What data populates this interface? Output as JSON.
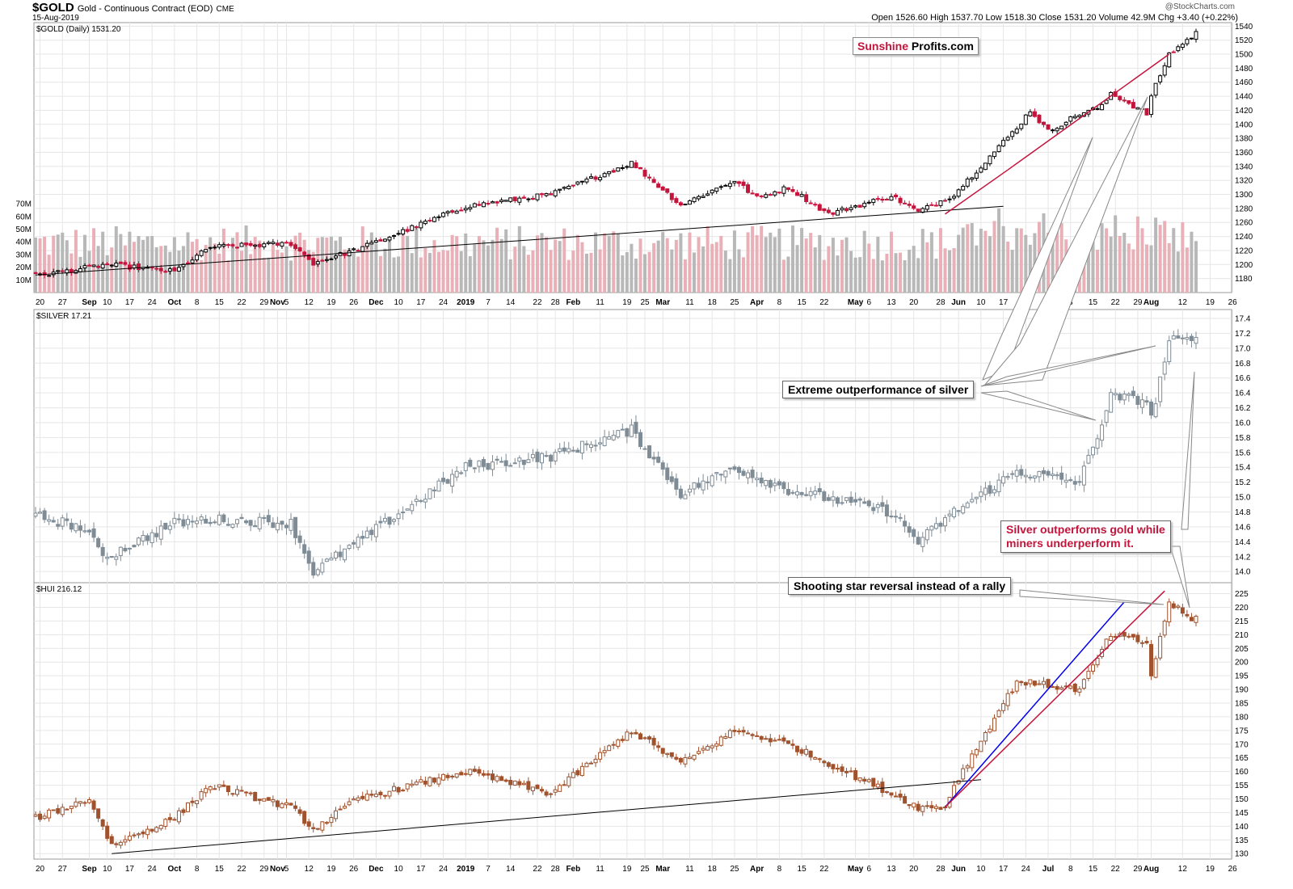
{
  "header": {
    "symbol": "$GOLD",
    "description": "Gold - Continuous Contract (EOD)",
    "exchange": "CME",
    "date": "15-Aug-2019",
    "watermark": "@StockCharts.com",
    "ohlc": "Open 1526.60  High 1537.70  Low 1518.30  Close 1531.20  Volume 42.9M  Chg +3.40 (+0.22%)"
  },
  "logo": {
    "part1": "Sunshine",
    "part2": "Profits.com"
  },
  "annotations": {
    "silver_outperformance": "Extreme outperformance of silver",
    "silver_vs_miners_line1": "Silver outperforms gold while",
    "silver_vs_miners_line2": "miners underperform it.",
    "shooting_star": "Shooting star reversal instead of a rally"
  },
  "colors": {
    "gold_up": "#000000",
    "gold_down": "#c4143c",
    "silver": "#7f8c96",
    "hui": "#a0522d",
    "volume_up": "#b8b8b8",
    "volume_down": "#eab0b8",
    "trend_red": "#c4143c",
    "trend_blue": "#0000ee",
    "trend_black": "#000000"
  },
  "chart_data": [
    {
      "type": "candlestick",
      "label": "$GOLD (Daily) 1531.20",
      "y_ticks": [
        1180,
        1200,
        1220,
        1240,
        1260,
        1280,
        1300,
        1320,
        1340,
        1360,
        1380,
        1400,
        1420,
        1440,
        1460,
        1480,
        1500,
        1520,
        1540
      ],
      "ylim": [
        1160,
        1545
      ],
      "volume_ticks": [
        "10M",
        "20M",
        "30M",
        "40M",
        "50M",
        "60M",
        "70M"
      ],
      "anchors": [
        [
          "2018-08-17",
          1184
        ],
        [
          "2018-09-10",
          1200
        ],
        [
          "2018-10-01",
          1190
        ],
        [
          "2018-10-11",
          1225
        ],
        [
          "2018-11-06",
          1230
        ],
        [
          "2018-11-13",
          1202
        ],
        [
          "2018-11-27",
          1222
        ],
        [
          "2018-12-31",
          1283
        ],
        [
          "2019-01-25",
          1300
        ],
        [
          "2019-02-20",
          1345
        ],
        [
          "2019-03-07",
          1285
        ],
        [
          "2019-03-25",
          1320
        ],
        [
          "2019-04-01",
          1295
        ],
        [
          "2019-04-10",
          1310
        ],
        [
          "2019-04-23",
          1272
        ],
        [
          "2019-05-13",
          1298
        ],
        [
          "2019-05-21",
          1275
        ],
        [
          "2019-05-31",
          1300
        ],
        [
          "2019-06-20",
          1395
        ],
        [
          "2019-06-25",
          1420
        ],
        [
          "2019-07-01",
          1390
        ],
        [
          "2019-07-10",
          1415
        ],
        [
          "2019-07-17",
          1425
        ],
        [
          "2019-07-19",
          1445
        ],
        [
          "2019-07-31",
          1415
        ],
        [
          "2019-08-01",
          1440
        ],
        [
          "2019-08-07",
          1500
        ],
        [
          "2019-08-14",
          1525
        ],
        [
          "2019-08-15",
          1531.2
        ]
      ]
    },
    {
      "type": "candlestick",
      "label": "$SILVER 17.21",
      "y_ticks": [
        14.0,
        14.2,
        14.4,
        14.6,
        14.8,
        15.0,
        15.2,
        15.4,
        15.6,
        15.8,
        16.0,
        16.2,
        16.4,
        16.6,
        16.8,
        17.0,
        17.2,
        17.4
      ],
      "ylim": [
        13.85,
        17.52
      ],
      "anchors": [
        [
          "2018-08-17",
          14.75
        ],
        [
          "2018-08-31",
          14.6
        ],
        [
          "2018-09-10",
          14.2
        ],
        [
          "2018-10-01",
          14.65
        ],
        [
          "2018-10-11",
          14.7
        ],
        [
          "2018-11-06",
          14.65
        ],
        [
          "2018-11-13",
          14.0
        ],
        [
          "2018-11-27",
          14.4
        ],
        [
          "2018-12-31",
          15.4
        ],
        [
          "2019-01-25",
          15.55
        ],
        [
          "2019-02-20",
          15.9
        ],
        [
          "2019-03-07",
          15.05
        ],
        [
          "2019-03-25",
          15.4
        ],
        [
          "2019-04-10",
          15.1
        ],
        [
          "2019-05-13",
          14.8
        ],
        [
          "2019-05-21",
          14.4
        ],
        [
          "2019-05-31",
          14.8
        ],
        [
          "2019-06-20",
          15.35
        ],
        [
          "2019-07-10",
          15.2
        ],
        [
          "2019-07-17",
          16.0
        ],
        [
          "2019-07-19",
          16.35
        ],
        [
          "2019-07-31",
          16.3
        ],
        [
          "2019-08-01",
          16.05
        ],
        [
          "2019-08-07",
          17.1
        ],
        [
          "2019-08-14",
          17.1
        ],
        [
          "2019-08-15",
          17.21
        ]
      ]
    },
    {
      "type": "candlestick",
      "label": "$HUI 216.12",
      "y_ticks": [
        130,
        135,
        140,
        145,
        150,
        155,
        160,
        165,
        170,
        175,
        180,
        185,
        190,
        195,
        200,
        205,
        210,
        215,
        220,
        225
      ],
      "ylim": [
        128,
        229
      ],
      "anchors": [
        [
          "2018-08-17",
          143
        ],
        [
          "2018-09-04",
          150
        ],
        [
          "2018-09-11",
          133
        ],
        [
          "2018-10-01",
          143
        ],
        [
          "2018-10-11",
          155
        ],
        [
          "2018-11-06",
          147
        ],
        [
          "2018-11-13",
          139
        ],
        [
          "2018-11-27",
          150
        ],
        [
          "2018-12-31",
          160
        ],
        [
          "2019-01-25",
          152
        ],
        [
          "2019-02-20",
          175
        ],
        [
          "2019-03-07",
          163
        ],
        [
          "2019-03-25",
          175
        ],
        [
          "2019-04-10",
          170
        ],
        [
          "2019-05-13",
          152
        ],
        [
          "2019-05-21",
          147
        ],
        [
          "2019-05-29",
          147
        ],
        [
          "2019-05-31",
          155
        ],
        [
          "2019-06-20",
          193
        ],
        [
          "2019-07-10",
          190
        ],
        [
          "2019-07-19",
          210
        ],
        [
          "2019-07-31",
          207
        ],
        [
          "2019-08-01",
          195
        ],
        [
          "2019-08-07",
          222
        ],
        [
          "2019-08-14",
          215
        ],
        [
          "2019-08-15",
          216.12
        ]
      ]
    }
  ],
  "x_axis_labels": [
    {
      "date": "2018-08-20",
      "t": "20"
    },
    {
      "date": "2018-08-27",
      "t": "27"
    },
    {
      "date": "2018-09-04",
      "t": "Sep",
      "bold": true
    },
    {
      "date": "2018-09-10",
      "t": "10"
    },
    {
      "date": "2018-09-17",
      "t": "17"
    },
    {
      "date": "2018-09-24",
      "t": "24"
    },
    {
      "date": "2018-10-01",
      "t": "Oct",
      "bold": true
    },
    {
      "date": "2018-10-08",
      "t": "8"
    },
    {
      "date": "2018-10-15",
      "t": "15"
    },
    {
      "date": "2018-10-22",
      "t": "22"
    },
    {
      "date": "2018-10-29",
      "t": "29"
    },
    {
      "date": "2018-11-01",
      "t": "Nov",
      "bold": true
    },
    {
      "date": "2018-11-05",
      "t": "5"
    },
    {
      "date": "2018-11-12",
      "t": "12"
    },
    {
      "date": "2018-11-19",
      "t": "19"
    },
    {
      "date": "2018-11-26",
      "t": "26"
    },
    {
      "date": "2018-12-03",
      "t": "Dec",
      "bold": true
    },
    {
      "date": "2018-12-10",
      "t": "10"
    },
    {
      "date": "2018-12-17",
      "t": "17"
    },
    {
      "date": "2018-12-24",
      "t": "24"
    },
    {
      "date": "2018-12-31",
      "t": "2019",
      "bold": true
    },
    {
      "date": "2019-01-07",
      "t": "7"
    },
    {
      "date": "2019-01-14",
      "t": "14"
    },
    {
      "date": "2019-01-22",
      "t": "22"
    },
    {
      "date": "2019-01-28",
      "t": "28"
    },
    {
      "date": "2019-02-01",
      "t": "Feb",
      "bold": true
    },
    {
      "date": "2019-02-11",
      "t": "11"
    },
    {
      "date": "2019-02-19",
      "t": "19"
    },
    {
      "date": "2019-02-25",
      "t": "25"
    },
    {
      "date": "2019-03-01",
      "t": "Mar",
      "bold": true
    },
    {
      "date": "2019-03-11",
      "t": "11"
    },
    {
      "date": "2019-03-18",
      "t": "18"
    },
    {
      "date": "2019-03-25",
      "t": "25"
    },
    {
      "date": "2019-04-01",
      "t": "Apr",
      "bold": true
    },
    {
      "date": "2019-04-08",
      "t": "8"
    },
    {
      "date": "2019-04-15",
      "t": "15"
    },
    {
      "date": "2019-04-22",
      "t": "22"
    },
    {
      "date": "2019-05-01",
      "t": "May",
      "bold": true
    },
    {
      "date": "2019-05-06",
      "t": "6"
    },
    {
      "date": "2019-05-13",
      "t": "13"
    },
    {
      "date": "2019-05-20",
      "t": "20"
    },
    {
      "date": "2019-05-28",
      "t": "28"
    },
    {
      "date": "2019-06-03",
      "t": "Jun",
      "bold": true
    },
    {
      "date": "2019-06-10",
      "t": "10"
    },
    {
      "date": "2019-06-17",
      "t": "17"
    },
    {
      "date": "2019-06-24",
      "t": "24"
    },
    {
      "date": "2019-07-01",
      "t": "Jul",
      "bold": true
    },
    {
      "date": "2019-07-08",
      "t": "8"
    },
    {
      "date": "2019-07-15",
      "t": "15"
    },
    {
      "date": "2019-07-22",
      "t": "22"
    },
    {
      "date": "2019-07-29",
      "t": "29"
    },
    {
      "date": "2019-08-01",
      "t": "Aug",
      "bold": true
    },
    {
      "date": "2019-08-12",
      "t": "12"
    },
    {
      "date": "2019-08-19",
      "t": "19"
    },
    {
      "date": "2019-08-26",
      "t": "26"
    }
  ]
}
